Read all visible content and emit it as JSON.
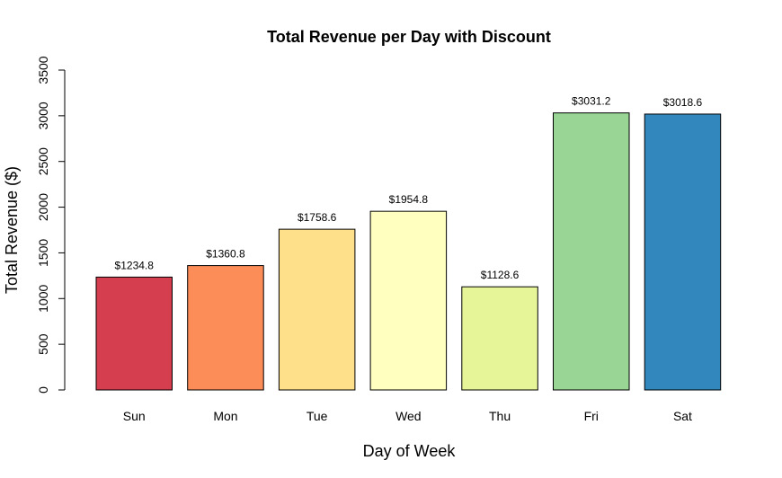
{
  "chart_data": {
    "type": "bar",
    "title": "Total Revenue per Day with Discount",
    "xlabel": "Day of Week",
    "ylabel": "Total Revenue ($)",
    "categories": [
      "Sun",
      "Mon",
      "Tue",
      "Wed",
      "Thu",
      "Fri",
      "Sat"
    ],
    "values": [
      1234.8,
      1360.8,
      1758.6,
      1954.8,
      1128.6,
      3031.2,
      3018.6
    ],
    "value_labels": [
      "$1234.8",
      "$1360.8",
      "$1758.6",
      "$1954.8",
      "$1128.6",
      "$3031.2",
      "$3018.6"
    ],
    "colors": [
      "#D53E4F",
      "#FC8D59",
      "#FEE08B",
      "#FFFFBF",
      "#E6F598",
      "#99D594",
      "#3288BD"
    ],
    "ylim": [
      0,
      3500
    ],
    "yticks": [
      "0",
      "500",
      "1000",
      "1500",
      "2000",
      "2500",
      "3000",
      "3500"
    ],
    "grid": false,
    "legend": "none"
  }
}
